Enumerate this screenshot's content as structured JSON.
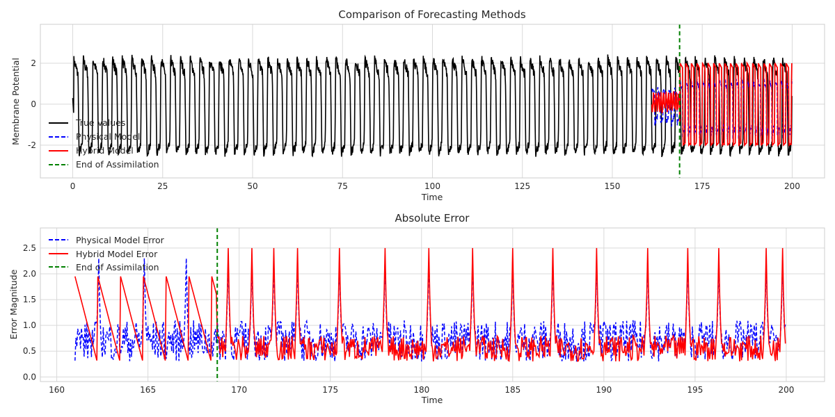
{
  "chart_data": [
    {
      "type": "line",
      "title": "Comparison of Forecasting Methods",
      "xlabel": "Time",
      "ylabel": "Membrane Potential",
      "xlim": [
        -9,
        209
      ],
      "ylim": [
        -3.6,
        3.9
      ],
      "xticks": [
        0,
        25,
        50,
        75,
        100,
        125,
        150,
        175,
        200
      ],
      "yticks": [
        -2,
        0,
        2
      ],
      "grid": true,
      "legend_position": "lower-left",
      "series": [
        {
          "name": "True Values",
          "color": "#000000",
          "style": "solid",
          "x_range": [
            0,
            200
          ],
          "period": 2.7,
          "amplitude_min": -3.3,
          "amplitude_max": 3.1
        },
        {
          "name": "Physical Model",
          "color": "#0000ff",
          "style": "dashed",
          "x_range": [
            161,
            200
          ],
          "amplitude_min": -1.9,
          "amplitude_max": 1.4
        },
        {
          "name": "Hybrid Model",
          "color": "#ff0000",
          "style": "solid",
          "x_range": [
            161,
            200
          ],
          "amplitude_min": -2.0,
          "amplitude_max": 2.1
        }
      ],
      "vline": {
        "name": "End of Assimilation",
        "x": 168.7,
        "color": "#008000",
        "style": "dashed"
      }
    },
    {
      "type": "line",
      "title": "Absolute Error",
      "xlabel": "Time",
      "ylabel": "Error Magnitude",
      "xlim": [
        159.1,
        202.1
      ],
      "ylim": [
        -0.09,
        2.89
      ],
      "xticks": [
        160,
        165,
        170,
        175,
        180,
        185,
        190,
        195,
        200
      ],
      "yticks": [
        0.0,
        0.5,
        1.0,
        1.5,
        2.0,
        2.5
      ],
      "ytick_labels": [
        "0.0",
        "0.5",
        "1.0",
        "1.5",
        "2.0",
        "2.5"
      ],
      "grid": true,
      "legend_position": "upper-left",
      "spike_times": [
        162.3,
        164.8,
        167.1,
        169.4,
        170.7,
        171.9,
        173.2,
        175.5,
        178.0,
        180.4,
        182.8,
        185.0,
        187.2,
        189.6,
        192.4,
        194.6,
        196.3,
        198.9,
        199.8
      ],
      "series": [
        {
          "name": "Physical Model Error",
          "color": "#0000ff",
          "style": "dashed",
          "x_range": [
            161,
            200
          ],
          "max": 2.6
        },
        {
          "name": "Hybrid Model Error",
          "color": "#ff0000",
          "style": "solid",
          "x_range": [
            161,
            200
          ],
          "max": 2.8
        }
      ],
      "vline": {
        "name": "End of Assimilation",
        "x": 168.8,
        "color": "#008000",
        "style": "dashed"
      }
    }
  ]
}
